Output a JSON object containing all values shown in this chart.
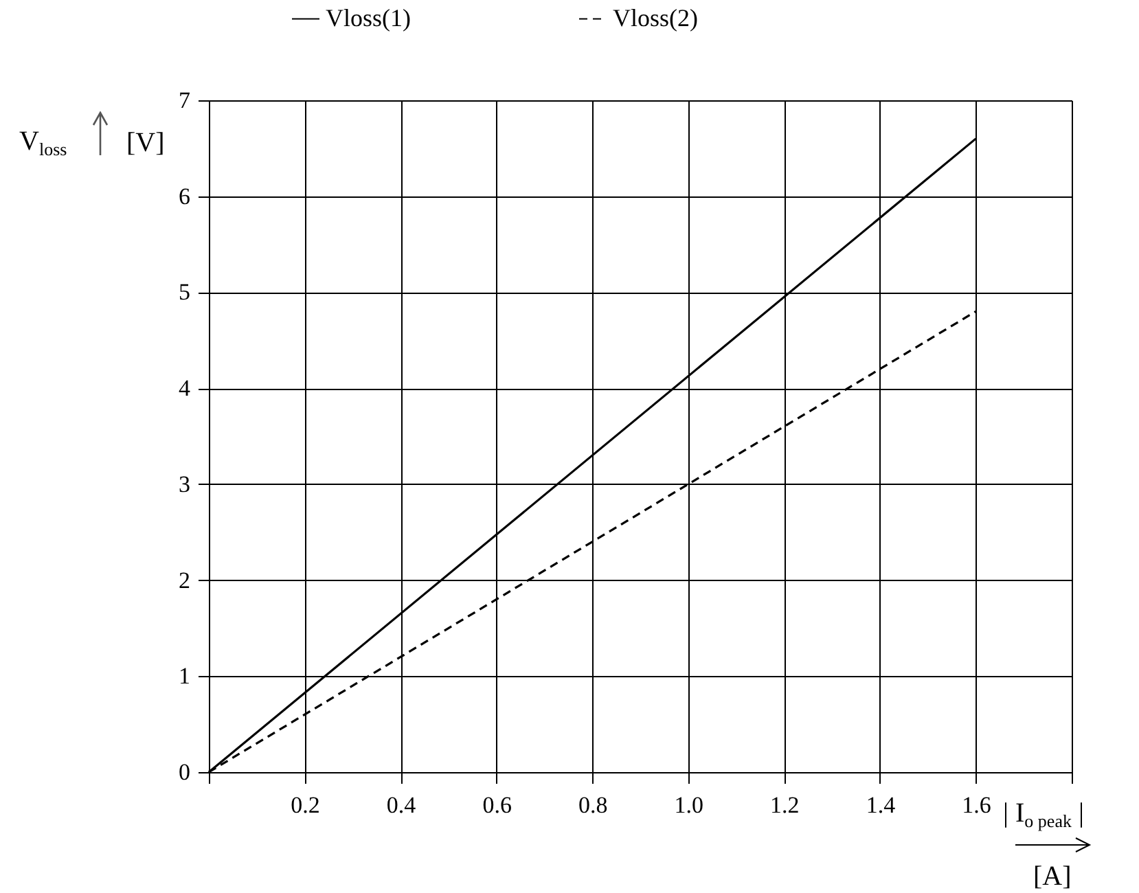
{
  "chart_data": {
    "type": "line",
    "xlabel": "| I$_{o peak}$ | [A]",
    "ylabel": "V$_{loss}$ [V]",
    "x": [
      0,
      1.6
    ],
    "series": [
      {
        "name": "Vloss(1)",
        "color": "#000000",
        "line_style": "solid",
        "values": [
          0,
          6.6
        ]
      },
      {
        "name": "Vloss(2)",
        "color": "#000000",
        "line_style": "dashed",
        "values": [
          0,
          4.8
        ]
      }
    ],
    "xlim": [
      0,
      1.8
    ],
    "ylim": [
      0,
      7
    ],
    "xticks": [
      {
        "value": 0,
        "label": null
      },
      0.2,
      0.4,
      0.6,
      0.8,
      {
        "value": 1.0,
        "label": "1.0"
      },
      1.2,
      1.4,
      1.6,
      {
        "value": 1.8,
        "label": null
      }
    ],
    "yticks": [
      0,
      1,
      2,
      3,
      4,
      5,
      6,
      7
    ],
    "grid": true,
    "legend": "top",
    "marker": "none"
  }
}
